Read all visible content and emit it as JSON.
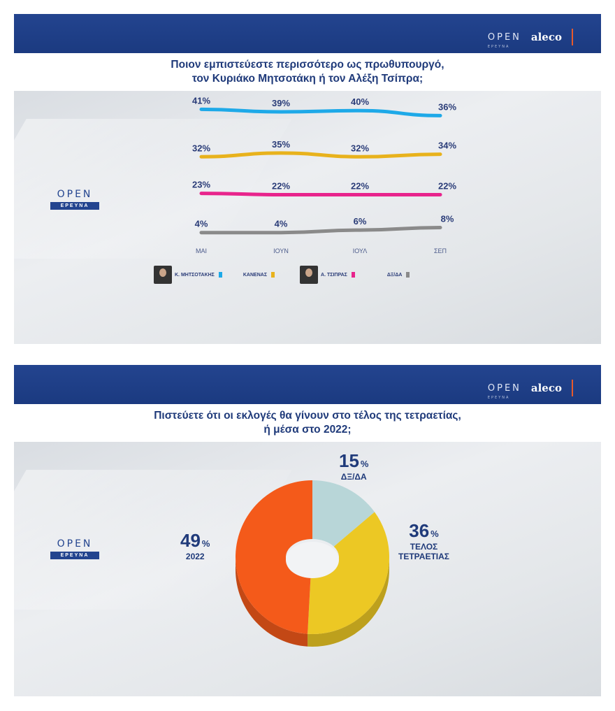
{
  "brand": {
    "open": "OPEN",
    "open_sub": "ΕΡΕΥΝΑ",
    "aleco": "aleco"
  },
  "logo": {
    "open": "OPEN",
    "badge": "ΕΡΕΥΝΑ"
  },
  "panel1": {
    "title_line1": "Ποιον εμπιστεύεστε περισσότερο ως πρωθυπουργό,",
    "title_line2": "τον Κυριάκο Μητσοτάκη ή τον Αλέξη Τσίπρα;"
  },
  "panel2": {
    "title_line1": "Πιστεύετε ότι οι εκλογές θα γίνουν στο τέλος της τετραετίας,",
    "title_line2": "ή μέσα στο 2022;"
  },
  "legend": [
    {
      "label": "Κ. ΜΗΤΣΟΤΑΚΗΣ",
      "color": "#1ea9e8"
    },
    {
      "label": "ΚΑΝΕΝΑΣ",
      "color": "#e8b21c"
    },
    {
      "label": "Α. ΤΣΙΠΡΑΣ",
      "color": "#e8248c"
    },
    {
      "label": "ΔΞ/ΔΑ",
      "color": "#8a8a8a"
    }
  ],
  "chart_data": [
    {
      "type": "line",
      "title": "Ποιον εμπιστεύεστε περισσότερο ως πρωθυπουργό, τον Κυριάκο Μητσοτάκη ή τον Αλέξη Τσίπρα;",
      "categories": [
        "ΜΑΙ",
        "ΙΟΥΝ",
        "ΙΟΥΛ",
        "ΣΕΠ"
      ],
      "series": [
        {
          "name": "Κ. ΜΗΤΣΟΤΑΚΗΣ",
          "color": "#1ea9e8",
          "values": [
            41,
            39,
            40,
            36
          ],
          "labels": [
            "41%",
            "39%",
            "40%",
            "36%"
          ]
        },
        {
          "name": "ΚΑΝΕΝΑΣ",
          "color": "#e8b21c",
          "values": [
            32,
            35,
            32,
            34
          ],
          "labels": [
            "32%",
            "35%",
            "32%",
            "34%"
          ]
        },
        {
          "name": "Α. ΤΣΙΠΡΑΣ",
          "color": "#e8248c",
          "values": [
            23,
            22,
            22,
            22
          ],
          "labels": [
            "23%",
            "22%",
            "22%",
            "22%"
          ]
        },
        {
          "name": "ΔΞ/ΔΑ",
          "color": "#8a8a8a",
          "values": [
            4,
            4,
            6,
            8
          ],
          "labels": [
            "4%",
            "4%",
            "6%",
            "8%"
          ]
        }
      ],
      "unit": "%"
    },
    {
      "type": "pie",
      "title": "Πιστεύετε ότι οι εκλογές θα γίνουν στο τέλος της τετραετίας, ή μέσα στο 2022;",
      "slices": [
        {
          "label": "ΔΞ/ΔΑ",
          "value": 15,
          "color": "#b8d6d8"
        },
        {
          "label": "ΤΕΛΟΣ ΤΕΤΡΑΕΤΙΑΣ",
          "value": 36,
          "color": "#ecc824"
        },
        {
          "label": "2022",
          "value": 49,
          "color": "#f45a1a"
        }
      ],
      "value_labels": [
        "15",
        "36",
        "49"
      ],
      "unit": "%",
      "sublabels": {
        "dk": "ΔΞ/ΔΑ",
        "end_line1": "ΤΕΛΟΣ",
        "end_line2": "ΤΕΤΡΑΕΤΙΑΣ",
        "y2022": "2022"
      }
    }
  ]
}
